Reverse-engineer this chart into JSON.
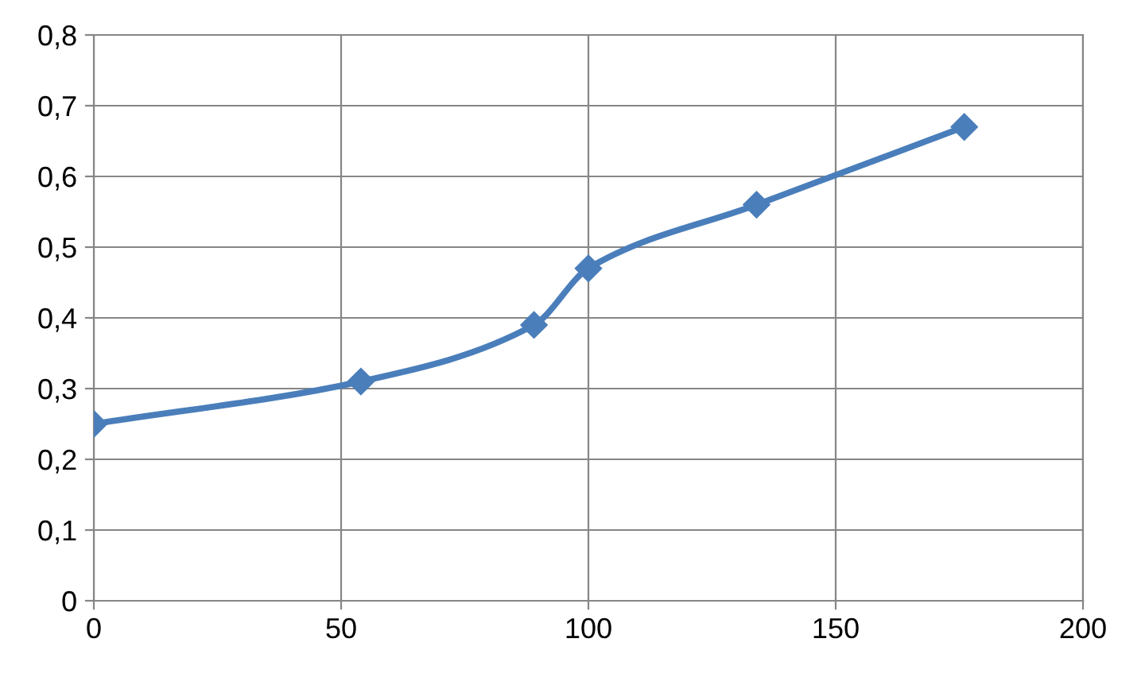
{
  "chart_data": {
    "type": "line",
    "x": [
      0,
      54,
      89,
      100,
      134,
      176
    ],
    "series": [
      {
        "color": "#4a7ebb",
        "values": [
          0.25,
          0.31,
          0.39,
          0.47,
          0.56,
          0.67
        ]
      }
    ],
    "xlim": [
      0,
      200
    ],
    "xticks": [
      0,
      50,
      100,
      150,
      200
    ],
    "ylim": [
      0,
      0.8
    ],
    "yticks": [
      0,
      {
        "value": 0.1,
        "label": "0,1"
      },
      {
        "value": 0.2,
        "label": "0,2"
      },
      {
        "value": 0.3,
        "label": "0,3"
      },
      {
        "value": 0.4,
        "label": "0,4"
      },
      {
        "value": 0.5,
        "label": "0,5"
      },
      {
        "value": 0.6,
        "label": "0,6"
      },
      {
        "value": 0.7,
        "label": "0,7"
      },
      {
        "value": 0.8,
        "label": "0,8"
      }
    ],
    "grid": true,
    "marker": "diamond",
    "line_style": "solid",
    "legend": false
  }
}
